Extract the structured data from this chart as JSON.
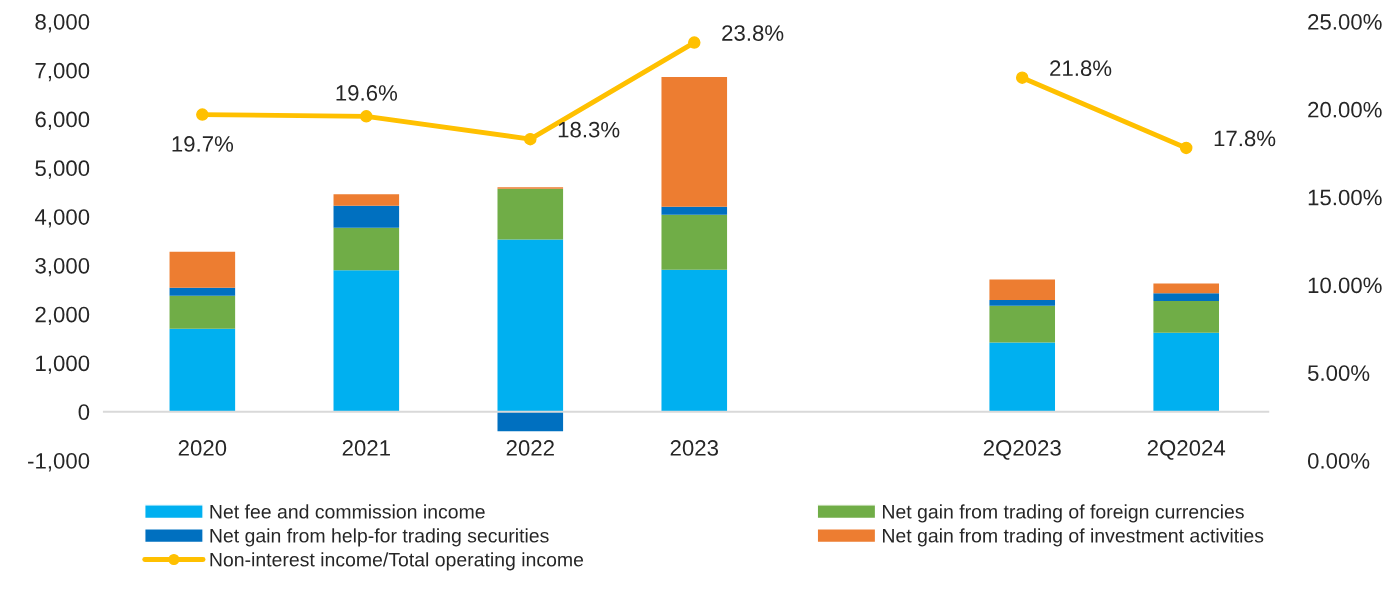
{
  "chart_data": {
    "type": "bar",
    "stacked": true,
    "categories": [
      "2020",
      "2021",
      "2022",
      "2023",
      null,
      "2Q2023",
      "2Q2024"
    ],
    "series": [
      {
        "name": "Net fee and commission income",
        "color": "#00b0f0",
        "values": [
          1700,
          2900,
          3530,
          2910,
          null,
          1420,
          1620
        ]
      },
      {
        "name": "Net gain from trading of foreign currencies",
        "color": "#70ad47",
        "values": [
          680,
          870,
          1040,
          1130,
          null,
          750,
          650
        ]
      },
      {
        "name": "Net gain from help-for trading securities",
        "color": "#0070c0",
        "values": [
          160,
          450,
          -400,
          160,
          null,
          120,
          160
        ]
      },
      {
        "name": "Net gain from trading of investment activities",
        "color": "#ed7d31",
        "values": [
          740,
          240,
          30,
          2660,
          null,
          420,
          200
        ]
      },
      {
        "name": "Non-interest income/Total operating income",
        "type": "line",
        "axis": "y2",
        "color": "#ffc000",
        "marker": "circle",
        "values": [
          19.7,
          19.6,
          18.3,
          23.8,
          null,
          21.8,
          17.8
        ],
        "value_labels": [
          "19.7%",
          "19.6%",
          "18.3%",
          "23.8%",
          null,
          "21.8%",
          "17.8%"
        ]
      }
    ],
    "ylim": [
      -1000,
      8000
    ],
    "yticks": [
      {
        "value": -1000,
        "label": "-1,000"
      },
      0,
      {
        "value": 1000,
        "label": "1,000"
      },
      {
        "value": 2000,
        "label": "2,000"
      },
      {
        "value": 3000,
        "label": "3,000"
      },
      {
        "value": 4000,
        "label": "4,000"
      },
      {
        "value": 5000,
        "label": "5,000"
      },
      {
        "value": 6000,
        "label": "6,000"
      },
      {
        "value": 7000,
        "label": "7,000"
      },
      {
        "value": 8000,
        "label": "8,000"
      }
    ],
    "y2lim": [
      0,
      25
    ],
    "y2ticks": [
      {
        "value": 0,
        "label": "0.00%"
      },
      {
        "value": 5,
        "label": "5.00%"
      },
      {
        "value": 10,
        "label": "10.00%"
      },
      {
        "value": 15,
        "label": "15.00%"
      },
      {
        "value": 20,
        "label": "20.00%"
      },
      {
        "value": 25,
        "label": "25.00%"
      }
    ],
    "grid": false,
    "legend": "bottom"
  }
}
